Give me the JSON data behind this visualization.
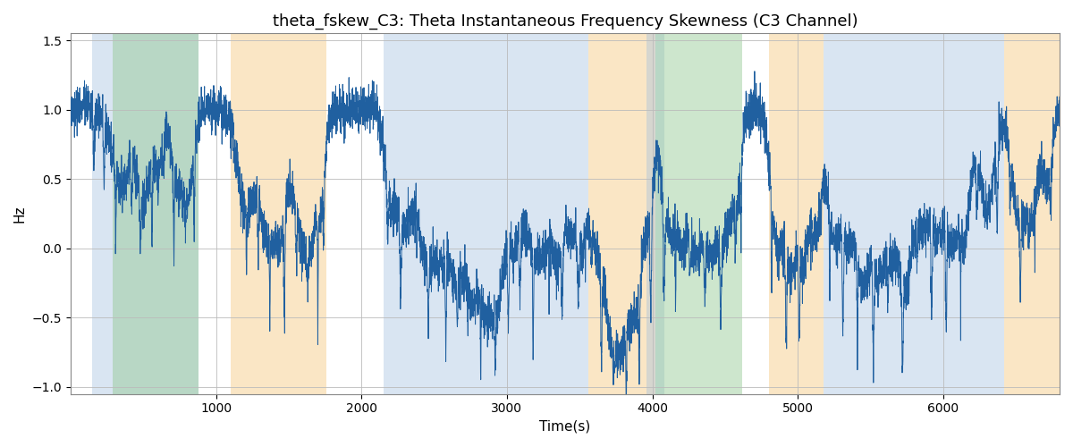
{
  "title": "theta_fskew_C3: Theta Instantaneous Frequency Skewness (C3 Channel)",
  "xlabel": "Time(s)",
  "ylabel": "Hz",
  "xlim": [
    0,
    6800
  ],
  "ylim": [
    -1.05,
    1.55
  ],
  "yticks": [
    -1.0,
    -0.5,
    0.0,
    0.5,
    1.0,
    1.5
  ],
  "xticks": [
    1000,
    2000,
    3000,
    4000,
    5000,
    6000
  ],
  "line_color": "#2060a0",
  "line_width": 0.7,
  "background_color": "#ffffff",
  "grid_color": "#bbbbbb",
  "title_fontsize": 13,
  "label_fontsize": 11,
  "bands": [
    {
      "xmin": 148,
      "xmax": 880,
      "color": "#a0bfe0",
      "alpha": 0.4
    },
    {
      "xmin": 290,
      "xmax": 880,
      "color": "#90c890",
      "alpha": 0.45
    },
    {
      "xmin": 1100,
      "xmax": 1760,
      "color": "#f5c880",
      "alpha": 0.45
    },
    {
      "xmin": 2150,
      "xmax": 3560,
      "color": "#a0bfe0",
      "alpha": 0.4
    },
    {
      "xmin": 3560,
      "xmax": 4020,
      "color": "#f5c880",
      "alpha": 0.45
    },
    {
      "xmin": 3960,
      "xmax": 4080,
      "color": "#a0bfe0",
      "alpha": 0.4
    },
    {
      "xmin": 4020,
      "xmax": 4620,
      "color": "#90c890",
      "alpha": 0.45
    },
    {
      "xmin": 4800,
      "xmax": 5180,
      "color": "#f5c880",
      "alpha": 0.45
    },
    {
      "xmin": 5180,
      "xmax": 6420,
      "color": "#a0bfe0",
      "alpha": 0.4
    },
    {
      "xmin": 6420,
      "xmax": 6800,
      "color": "#f5c880",
      "alpha": 0.45
    }
  ]
}
